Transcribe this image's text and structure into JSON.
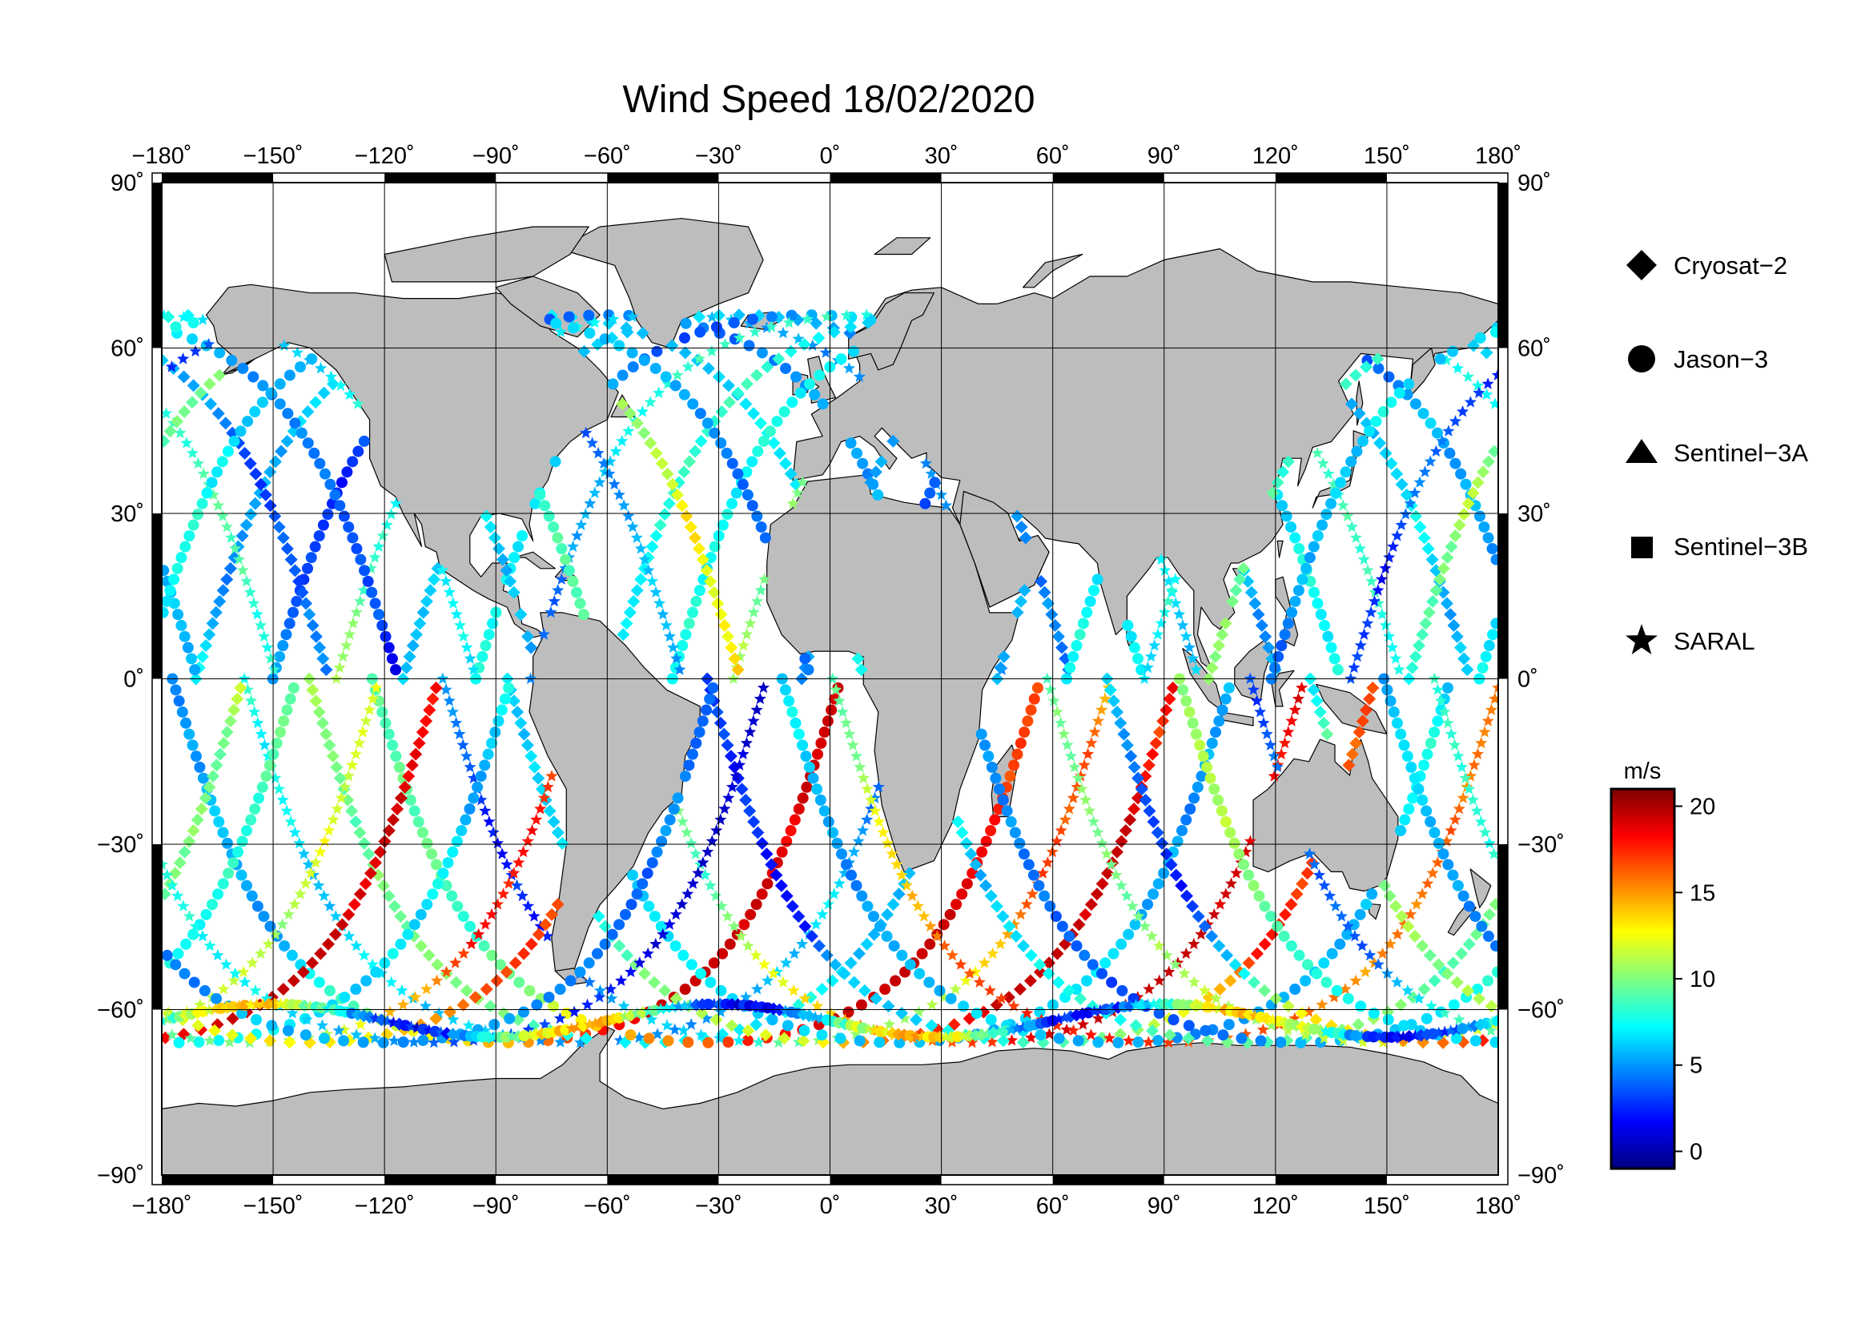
{
  "title": "Wind Speed 18/02/2020",
  "map": {
    "lon_range": [
      -180,
      180
    ],
    "lat_range": [
      -90,
      90
    ],
    "lon_ticks": [
      "−180˚",
      "−150˚",
      "−120˚",
      "−90˚",
      "−60˚",
      "−30˚",
      "0˚",
      "30˚",
      "60˚",
      "90˚",
      "120˚",
      "150˚",
      "180˚"
    ],
    "lat_ticks": [
      "90˚",
      "60˚",
      "30˚",
      "0˚",
      "−30˚",
      "−60˚",
      "−90˚"
    ],
    "grid": true,
    "land_color": "#bdbdbd",
    "ocean_color": "#ffffff"
  },
  "legend": {
    "items": [
      {
        "label": "Cryosat−2",
        "icon": "diamond-icon"
      },
      {
        "label": "Jason−3",
        "icon": "circle-icon"
      },
      {
        "label": "Sentinel−3A",
        "icon": "triangle-icon"
      },
      {
        "label": "Sentinel−3B",
        "icon": "square-icon"
      },
      {
        "label": "SARAL",
        "icon": "star-icon"
      }
    ]
  },
  "colorbar": {
    "unit": "m/s",
    "range": [
      -1,
      21
    ],
    "ticks": [
      "20",
      "15",
      "10",
      "5",
      "0"
    ],
    "colormap": "jet"
  }
}
